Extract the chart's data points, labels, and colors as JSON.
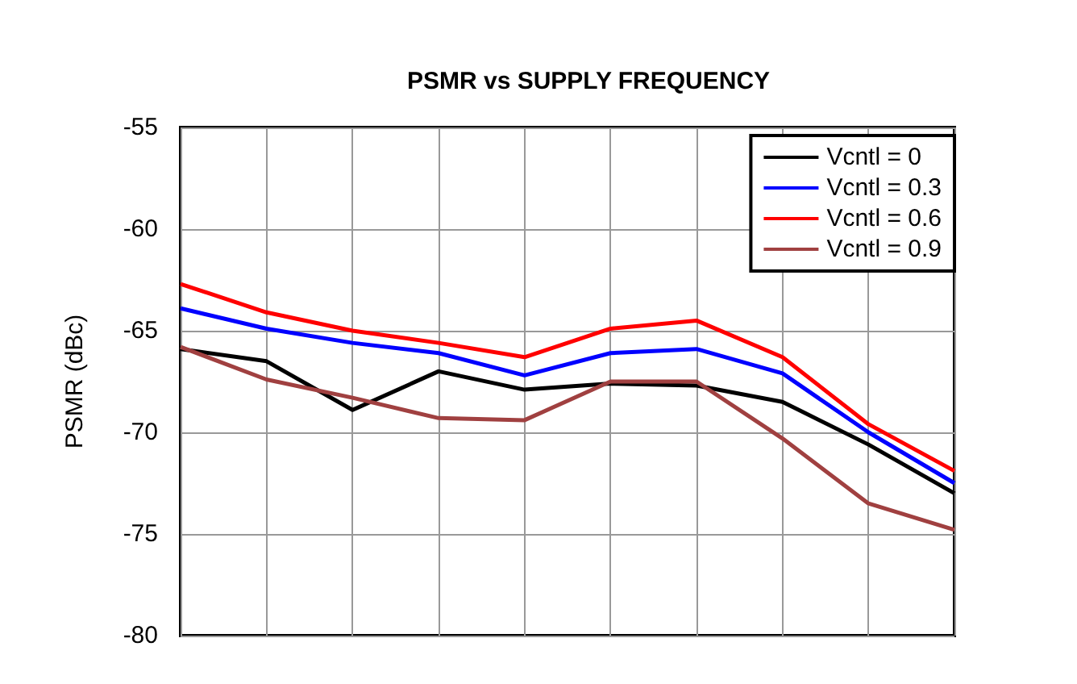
{
  "chart_data": {
    "type": "line",
    "title": "PSMR vs SUPPLY FREQUENCY",
    "ylabel": "PSMR (dBc)",
    "categories": [
      null,
      null,
      null,
      null,
      null,
      null,
      null,
      null,
      null,
      null
    ],
    "series": [
      {
        "name": "Vcntl = 0",
        "color": "#000000",
        "values": [
          -65.9,
          -66.5,
          -68.9,
          -67.0,
          -67.9,
          -67.6,
          -67.7,
          -68.5,
          -70.6,
          -73.0
        ]
      },
      {
        "name": "Vcntl = 0.3",
        "color": "#0000ff",
        "values": [
          -63.9,
          -64.9,
          -65.6,
          -66.1,
          -67.2,
          -66.1,
          -65.9,
          -67.1,
          -70.0,
          -72.5
        ]
      },
      {
        "name": "Vcntl = 0.6",
        "color": "#ff0000",
        "values": [
          -62.7,
          -64.1,
          -65.0,
          -65.6,
          -66.3,
          -64.9,
          -64.5,
          -66.3,
          -69.6,
          -71.9
        ]
      },
      {
        "name": "Vcntl = 0.9",
        "color": "#a04040",
        "values": [
          -65.8,
          -67.4,
          -68.3,
          -69.3,
          -69.4,
          -67.5,
          -67.5,
          -70.3,
          -73.5,
          -74.8
        ]
      }
    ],
    "ylim": [
      -80,
      -55
    ],
    "yticks": [
      -80,
      -75,
      -70,
      -65,
      -60,
      -55
    ],
    "grid": true,
    "legend": "top right",
    "tick_labels": "y"
  }
}
